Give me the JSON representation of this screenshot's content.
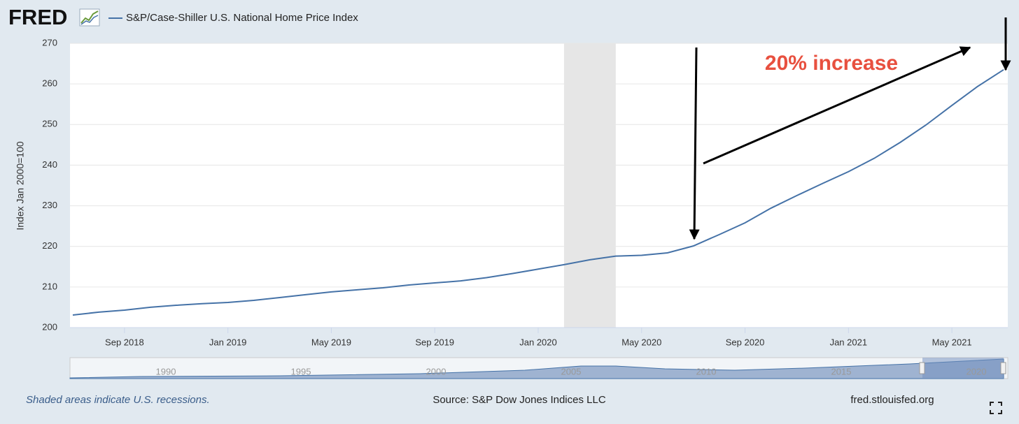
{
  "chart_data": {
    "type": "line",
    "logo": "FRED",
    "series": [
      {
        "name": "S&P/Case-Shiller U.S. National Home Price Index",
        "color": "#4572a7",
        "values": [
          203.1,
          203.8,
          204.3,
          205.0,
          205.5,
          205.9,
          206.2,
          206.7,
          207.4,
          208.1,
          208.8,
          209.3,
          209.8,
          210.5,
          211.0,
          211.5,
          212.3,
          213.3,
          214.4,
          215.5,
          216.7,
          217.6,
          217.8,
          218.4,
          220.1,
          222.9,
          225.8,
          229.4,
          232.5,
          235.5,
          238.4,
          241.7,
          245.6,
          249.9,
          254.7,
          259.4,
          263.5
        ]
      }
    ],
    "x": [
      "2018-07",
      "2018-08",
      "2018-09",
      "2018-10",
      "2018-11",
      "2018-12",
      "2019-01",
      "2019-02",
      "2019-03",
      "2019-04",
      "2019-05",
      "2019-06",
      "2019-07",
      "2019-08",
      "2019-09",
      "2019-10",
      "2019-11",
      "2019-12",
      "2020-01",
      "2020-02",
      "2020-03",
      "2020-04",
      "2020-05",
      "2020-06",
      "2020-07",
      "2020-08",
      "2020-09",
      "2020-10",
      "2020-11",
      "2020-12",
      "2021-01",
      "2021-02",
      "2021-03",
      "2021-04",
      "2021-05",
      "2021-06",
      "2021-07"
    ],
    "xlim": [
      "2018-07",
      "2021-07"
    ],
    "xticks": [
      {
        "value": "2018-09",
        "label": "Sep 2018"
      },
      {
        "value": "2019-01",
        "label": "Jan 2019"
      },
      {
        "value": "2019-05",
        "label": "May 2019"
      },
      {
        "value": "2019-09",
        "label": "Sep 2019"
      },
      {
        "value": "2020-01",
        "label": "Jan 2020"
      },
      {
        "value": "2020-05",
        "label": "May 2020"
      },
      {
        "value": "2020-09",
        "label": "Sep 2020"
      },
      {
        "value": "2021-01",
        "label": "Jan 2021"
      },
      {
        "value": "2021-05",
        "label": "May 2021"
      }
    ],
    "ylim": [
      200,
      270
    ],
    "yticks": [
      200,
      210,
      220,
      230,
      240,
      250,
      260,
      270
    ],
    "ylabel": "Index Jan 2000=100",
    "grid": true,
    "recession": [
      "2020-02",
      "2020-04"
    ],
    "annotation": "20% increase",
    "navigator_labels": [
      1990,
      1995,
      2000,
      2005,
      2010,
      2015,
      2020
    ],
    "footer_note": "Shaded areas indicate U.S. recessions.",
    "source": "Source: S&P Dow Jones Indices LLC",
    "site": "fred.stlouisfed.org"
  }
}
